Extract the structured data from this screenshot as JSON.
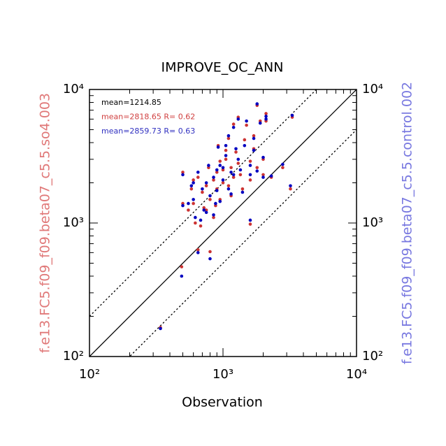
{
  "chart_data": {
    "type": "scatter",
    "title": "IMPROVE_OC_ANN",
    "xlabel": "Observation",
    "ylabel": "f.e13.FC5.f09_f09.beta07_c5.5.so4.003",
    "y2label": "f.e13.FC5.f09_f09.beta07_c5.5.control.002",
    "ylabel_color": "#e07878",
    "y2label_color": "#7878e0",
    "log_scale": true,
    "xlim": [
      100,
      10000
    ],
    "ylim": [
      100,
      10000
    ],
    "xticks": [
      {
        "value": 100,
        "label": "10²"
      },
      {
        "value": 1000,
        "label": "10³"
      },
      {
        "value": 10000,
        "label": "10⁴"
      }
    ],
    "yticks": [
      {
        "value": 100,
        "label": "10²"
      },
      {
        "value": 1000,
        "label": "10³"
      },
      {
        "value": 10000,
        "label": "10⁴"
      }
    ],
    "xminorticks": [
      200,
      300,
      400,
      500,
      600,
      700,
      800,
      900,
      2000,
      3000,
      4000,
      5000,
      6000,
      7000,
      8000,
      9000
    ],
    "yminorticks": [
      200,
      300,
      400,
      500,
      600,
      700,
      800,
      900,
      2000,
      3000,
      4000,
      5000,
      6000,
      7000,
      8000,
      9000
    ],
    "ref_lines": [
      {
        "ratio": 1,
        "style": "solid"
      },
      {
        "ratio": 2,
        "style": "dotted"
      },
      {
        "ratio": 0.5,
        "style": "dotted"
      }
    ],
    "annotations": [
      {
        "text": "mean=1214.85",
        "color": "#000000"
      },
      {
        "text": "mean=2818.65 R= 0.62",
        "color": "#d04040"
      },
      {
        "text": "mean=2859.73 R= 0.63",
        "color": "#3030c0"
      }
    ],
    "x": [
      340,
      490,
      650,
      800,
      1600,
      2300,
      2800,
      3200,
      3300,
      2100,
      1900,
      1800,
      1500,
      1300,
      1200,
      1100,
      1450,
      1700,
      1250,
      1050,
      950,
      1000,
      1150,
      1350,
      1600,
      1800,
      2000,
      850,
      750,
      700,
      800,
      900,
      650,
      600,
      550,
      500,
      500,
      580,
      620,
      680,
      720,
      880,
      950,
      1000,
      1100,
      1200,
      900,
      780,
      600,
      1050,
      1300,
      1700,
      2000,
      1400,
      850,
      750,
      1600,
      920,
      1150,
      2100
    ],
    "series": [
      {
        "color": "#cc3333",
        "values": [
          165,
          470,
          630,
          610,
          980,
          2200,
          2600,
          1800,
          6200,
          6600,
          5800,
          7600,
          5400,
          6200,
          5500,
          4300,
          4200,
          3600,
          3400,
          3000,
          2900,
          2500,
          2600,
          2300,
          2100,
          2600,
          2300,
          2100,
          1900,
          1700,
          1500,
          1800,
          2200,
          1400,
          1250,
          1400,
          2400,
          1800,
          1000,
          950,
          1300,
          1350,
          1500,
          2000,
          1900,
          2200,
          2400,
          2600,
          2100,
          3500,
          2800,
          4500,
          3000,
          1800,
          1100,
          1250,
          2900,
          3800,
          1600,
          5800
        ]
      },
      {
        "color": "#0000c0",
        "values": [
          162,
          400,
          600,
          540,
          1050,
          2250,
          2750,
          1900,
          6400,
          6300,
          5600,
          7800,
          5800,
          6000,
          5200,
          4500,
          3800,
          3500,
          3600,
          3200,
          2700,
          2600,
          2400,
          2500,
          2300,
          2450,
          2200,
          2200,
          2000,
          1800,
          1600,
          1750,
          2400,
          1500,
          1400,
          1350,
          2300,
          1900,
          1100,
          1050,
          1250,
          1400,
          1450,
          2100,
          1800,
          2300,
          2500,
          2700,
          2000,
          3800,
          3000,
          4300,
          3100,
          1700,
          1150,
          1200,
          2700,
          3700,
          1650,
          6000
        ]
      }
    ]
  }
}
